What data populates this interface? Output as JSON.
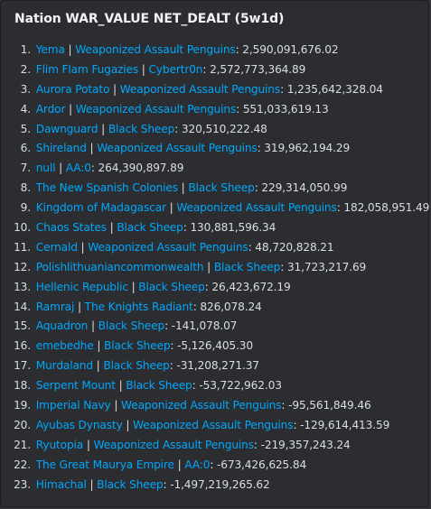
{
  "embed": {
    "title": "Nation WAR_VALUE NET_DEALT (5w1d)",
    "rows": [
      {
        "rank": "1.",
        "nation": "Yema",
        "alliance": "Weaponized Assault Penguins",
        "value": "2,590,091,676.02"
      },
      {
        "rank": "2.",
        "nation": "Flim Flam Fugazies",
        "alliance": "Cybertr0n",
        "value": "2,572,773,364.89"
      },
      {
        "rank": "3.",
        "nation": "Aurora Potato",
        "alliance": "Weaponized Assault Penguins",
        "value": "1,235,642,328.04"
      },
      {
        "rank": "4.",
        "nation": "Ardor",
        "alliance": "Weaponized Assault Penguins",
        "value": "551,033,619.13"
      },
      {
        "rank": "5.",
        "nation": "Dawnguard",
        "alliance": "Black Sheep",
        "value": "320,510,222.48"
      },
      {
        "rank": "6.",
        "nation": "Shireland",
        "alliance": "Weaponized Assault Penguins",
        "value": "319,962,194.29"
      },
      {
        "rank": "7.",
        "nation": "null",
        "alliance": "AA:0",
        "value": "264,390,897.89"
      },
      {
        "rank": "8.",
        "nation": "The New Spanish Colonies",
        "alliance": "Black Sheep",
        "value": "229,314,050.99"
      },
      {
        "rank": "9.",
        "nation": "Kingdom of Madagascar",
        "alliance": "Weaponized Assault Penguins",
        "value": "182,058,951.49"
      },
      {
        "rank": "10.",
        "nation": "Chaos States",
        "alliance": "Black Sheep",
        "value": "130,881,596.34"
      },
      {
        "rank": "11.",
        "nation": "Cernald",
        "alliance": "Weaponized Assault Penguins",
        "value": "48,720,828.21"
      },
      {
        "rank": "12.",
        "nation": "Polishlithuaniancommonwealth",
        "alliance": "Black Sheep",
        "value": "31,723,217.69"
      },
      {
        "rank": "13.",
        "nation": "Hellenic Republic",
        "alliance": "Black Sheep",
        "value": "26,423,672.19"
      },
      {
        "rank": "14.",
        "nation": "Ramraj",
        "alliance": "The Knights Radiant",
        "value": "826,078.24"
      },
      {
        "rank": "15.",
        "nation": "Aquadron",
        "alliance": "Black Sheep",
        "value": "-141,078.07"
      },
      {
        "rank": "16.",
        "nation": "emebedhe",
        "alliance": "Black Sheep",
        "value": "-5,126,405.30"
      },
      {
        "rank": "17.",
        "nation": "Murdaland",
        "alliance": "Black Sheep",
        "value": "-31,208,271.37"
      },
      {
        "rank": "18.",
        "nation": "Serpent Mount",
        "alliance": "Black Sheep",
        "value": "-53,722,962.03"
      },
      {
        "rank": "19.",
        "nation": "Imperial Navy",
        "alliance": "Weaponized Assault Penguins",
        "value": "-95,561,849.46"
      },
      {
        "rank": "20.",
        "nation": "Ayubas Dynasty",
        "alliance": "Weaponized Assault Penguins",
        "value": "-129,614,413.59"
      },
      {
        "rank": "21.",
        "nation": "Ryutopia",
        "alliance": "Weaponized Assault Penguins",
        "value": "-219,357,243.24"
      },
      {
        "rank": "22.",
        "nation": "The Great Maurya Empire",
        "alliance": "AA:0",
        "value": "-673,426,625.84"
      },
      {
        "rank": "23.",
        "nation": "Himachal",
        "alliance": "Black Sheep",
        "value": "-1,497,219,265.62"
      }
    ]
  },
  "colors": {
    "background": "#2b2d31",
    "link": "#00a8fc",
    "text": "#dbdee1",
    "title": "#f2f3f5"
  }
}
